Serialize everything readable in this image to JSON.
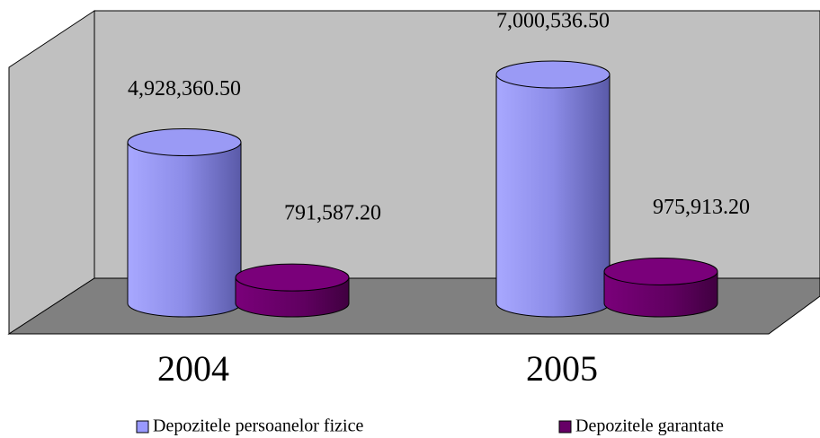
{
  "chart_data": {
    "type": "bar3d",
    "categories": [
      "2004",
      "2005"
    ],
    "series": [
      {
        "name": "Depozitele persoanelor fizice",
        "color": "#9999ff",
        "values": [
          4928360.5,
          7000536.5
        ],
        "value_labels": [
          "4,928,360.50",
          "7,000,536.50"
        ]
      },
      {
        "name": "Depozitele garantate",
        "color": "#660066",
        "values": [
          791587.2,
          975913.2
        ],
        "value_labels": [
          "791,587.20",
          "975,913.20"
        ]
      }
    ]
  }
}
